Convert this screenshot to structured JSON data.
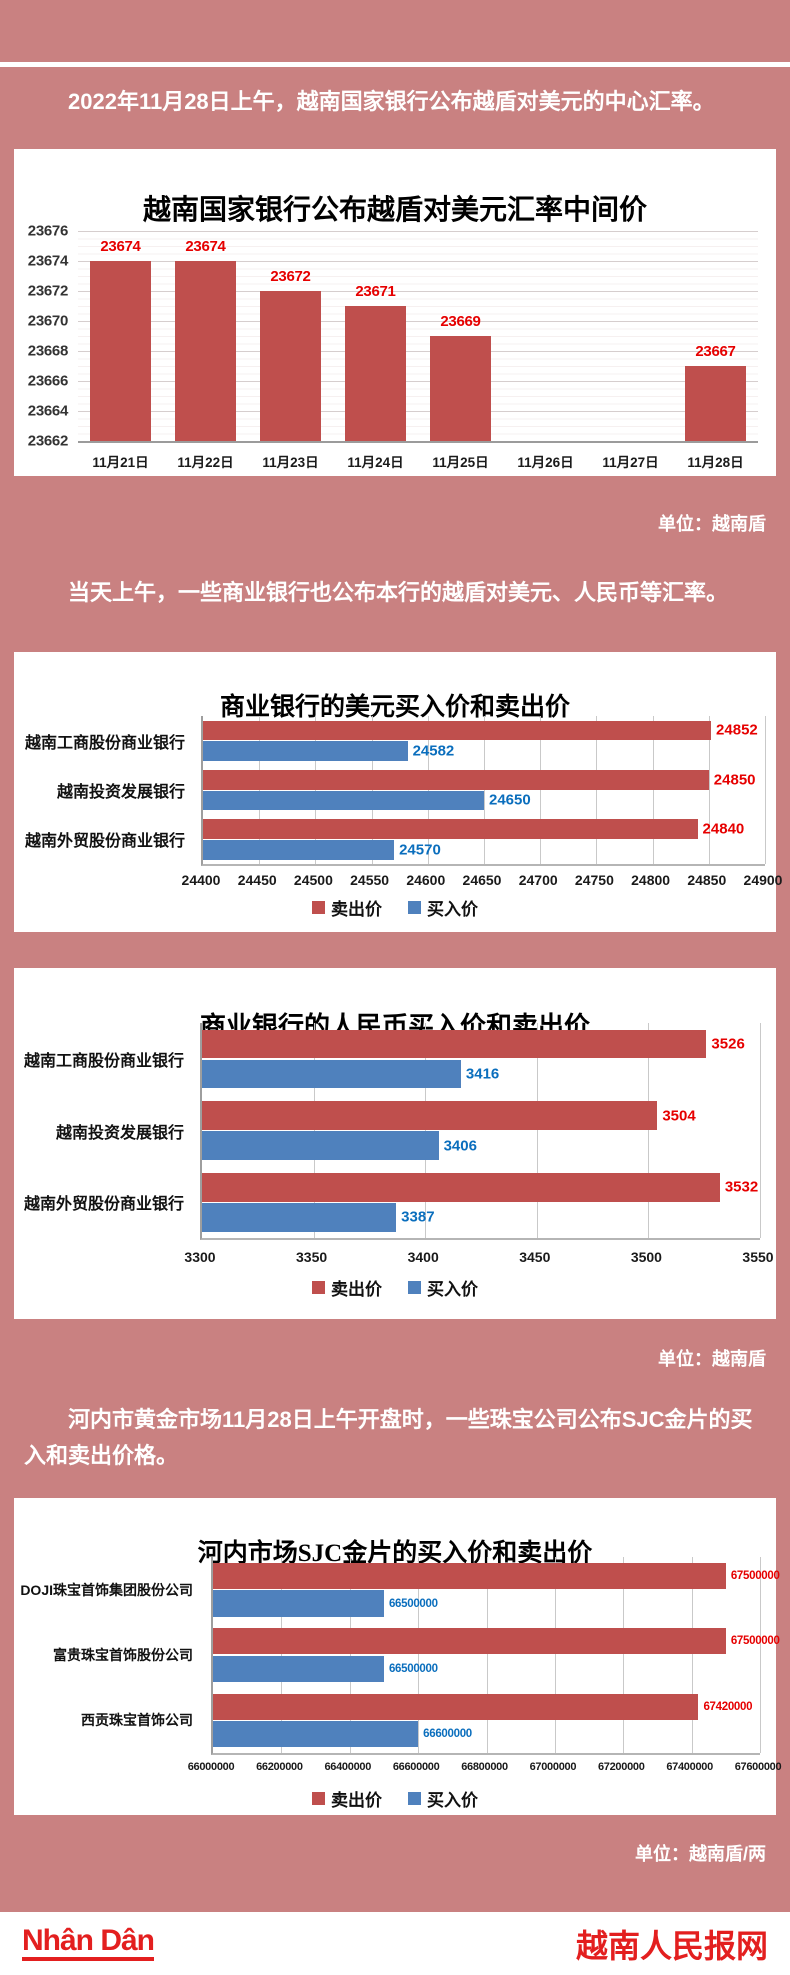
{
  "page": {
    "background": "#c98181",
    "intro1": "2022年11月28日上午，越南国家银行公布越盾对美元的中心汇率。",
    "intro2": "当天上午，一些商业银行也公布本行的越盾对美元、人民币等汇率。",
    "intro3": "河内市黄金市场11月28日上午开盘时，一些珠宝公司公布SJC金片的买入和卖出价格。",
    "unit_after_chart1": "单位：越南盾",
    "unit_after_chart3": "单位：越南盾",
    "unit_after_chart4": "单位：越南盾/两"
  },
  "footer": {
    "logo_text": "Nhân Dân",
    "site_name": "越南人民报网",
    "brand_color": "#e31f1f"
  },
  "colors": {
    "page_pink": "#c98181",
    "sell_bar": "#bf4f4d",
    "buy_bar": "#4f81bd",
    "sell_value_label": "#e60000",
    "buy_value_label": "#0a6ebd"
  },
  "chart_data": [
    {
      "type": "bar",
      "orientation": "vertical",
      "title": "越南国家银行公布越盾对美元汇率中间价",
      "categories": [
        "11月21日",
        "11月22日",
        "11月23日",
        "11月24日",
        "11月25日",
        "11月26日",
        "11月27日",
        "11月28日"
      ],
      "values": [
        23674,
        23674,
        23672,
        23671,
        23669,
        null,
        null,
        23667
      ],
      "ylim": [
        23662,
        23676
      ],
      "yticks": [
        23662,
        23664,
        23666,
        23668,
        23670,
        23672,
        23674,
        23676
      ],
      "bar_color": "#bf4f4d",
      "label_color": "#e60000",
      "grid": true,
      "unit": "越南盾"
    },
    {
      "type": "bar",
      "orientation": "horizontal",
      "title": "商业银行的美元买入价和卖出价",
      "categories": [
        "越南工商股份商业银行",
        "越南投资发展银行",
        "越南外贸股份商业银行"
      ],
      "series": [
        {
          "name": "卖出价",
          "color": "#bf4f4d",
          "label_color": "#e60000",
          "values": [
            24852,
            24850,
            24840
          ]
        },
        {
          "name": "买入价",
          "color": "#4f81bd",
          "label_color": "#0a6ebd",
          "values": [
            24582,
            24650,
            24570
          ]
        }
      ],
      "xlim": [
        24400,
        24900
      ],
      "xticks": [
        24400,
        24450,
        24500,
        24550,
        24600,
        24650,
        24700,
        24750,
        24800,
        24850,
        24900
      ],
      "grid": true,
      "legend_position": "bottom"
    },
    {
      "type": "bar",
      "orientation": "horizontal",
      "title": "商业银行的人民币买入价和卖出价",
      "categories": [
        "越南工商股份商业银行",
        "越南投资发展银行",
        "越南外贸股份商业银行"
      ],
      "series": [
        {
          "name": "卖出价",
          "color": "#bf4f4d",
          "label_color": "#e60000",
          "values": [
            3526,
            3504,
            3532
          ]
        },
        {
          "name": "买入价",
          "color": "#4f81bd",
          "label_color": "#0a6ebd",
          "values": [
            3416,
            3406,
            3387
          ]
        }
      ],
      "xlim": [
        3300,
        3550
      ],
      "xticks": [
        3300,
        3350,
        3400,
        3450,
        3500,
        3550
      ],
      "grid": true,
      "legend_position": "bottom",
      "unit": "越南盾"
    },
    {
      "type": "bar",
      "orientation": "horizontal",
      "title": "河内市场SJC金片的买入价和卖出价",
      "categories": [
        "DOJI珠宝首饰集团股份公司",
        "富贵珠宝首饰股份公司",
        "西贡珠宝首饰公司"
      ],
      "series": [
        {
          "name": "卖出价",
          "color": "#bf4f4d",
          "label_color": "#e60000",
          "values": [
            67500000,
            67500000,
            67420000
          ]
        },
        {
          "name": "买入价",
          "color": "#4f81bd",
          "label_color": "#0a6ebd",
          "values": [
            66500000,
            66500000,
            66600000
          ]
        }
      ],
      "xlim": [
        66000000,
        67600000
      ],
      "xticks": [
        66000000,
        66200000,
        66400000,
        66600000,
        66800000,
        67000000,
        67200000,
        67400000,
        67600000
      ],
      "grid": true,
      "legend_position": "bottom",
      "unit": "越南盾/两"
    }
  ]
}
